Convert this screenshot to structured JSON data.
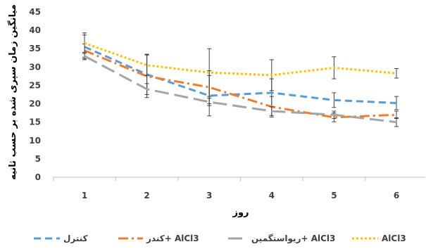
{
  "chart_data": {
    "type": "line",
    "xlabel": "روز",
    "ylabel": "میانگین زمان سپری شده بر حسب ثانیه",
    "x": [
      1,
      2,
      3,
      4,
      5,
      6
    ],
    "ylim": [
      0,
      45
    ],
    "yticks": [
      0,
      5,
      10,
      15,
      20,
      25,
      30,
      35,
      40,
      45
    ],
    "grid": false,
    "legend_position": "bottom",
    "series": [
      {
        "name": "کنترل",
        "color": "#5B9BD5",
        "dash": "dashed",
        "values": [
          35.5,
          28,
          22.2,
          23,
          21,
          20.2
        ],
        "errors": [
          3.2,
          5.5,
          5.5,
          3.8,
          2.0,
          1.8
        ]
      },
      {
        "name": "کندر+ AlCl3",
        "color": "#ED7D31",
        "dash": "dashdot",
        "values": [
          34.5,
          27.5,
          24.5,
          19.2,
          16.3,
          17
        ],
        "errors": [
          1.8,
          5.8,
          4.5,
          2.8,
          1.2,
          1.0
        ]
      },
      {
        "name": "ریواستگمین+ AlCl3",
        "color": "#A5A5A5",
        "dash": "longdash",
        "values": [
          33,
          24,
          20.5,
          18,
          17,
          15
        ],
        "errors": [
          1.0,
          1.5,
          1.0,
          1.2,
          1.0,
          1.2
        ]
      },
      {
        "name": "AlCl3",
        "color": "#FFC000",
        "dash": "dotted",
        "values": [
          36.5,
          30.5,
          28.5,
          27.8,
          29.8,
          28.3
        ],
        "errors": [
          2.8,
          2.8,
          6.5,
          4.2,
          3.0,
          1.3
        ]
      }
    ]
  }
}
